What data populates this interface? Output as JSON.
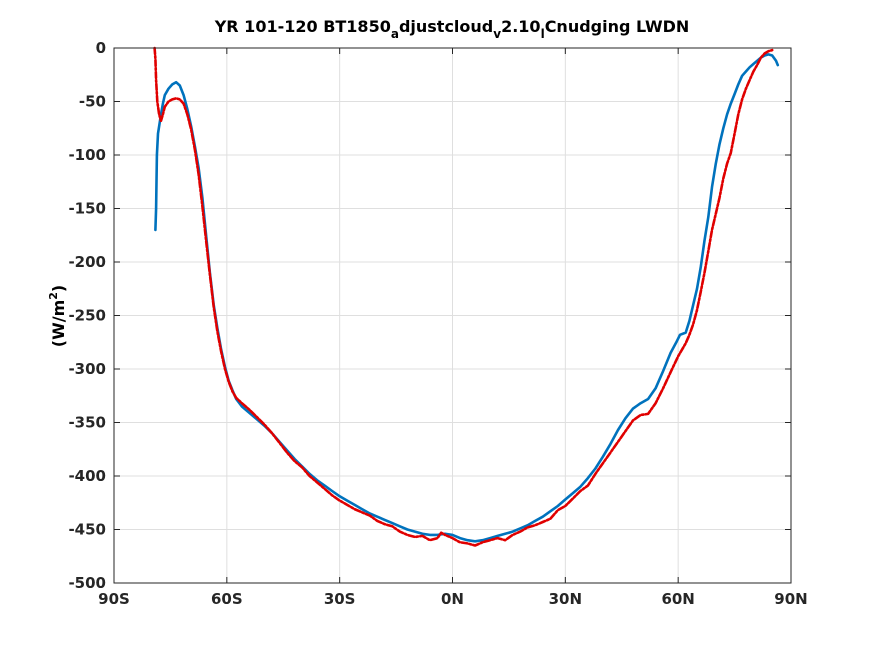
{
  "chart_data": {
    "type": "line",
    "title": {
      "prefix": "YR 101-120 BT1850",
      "sub1": "a",
      "mid": "djustcloud",
      "sub2": "v",
      "mid2": "2.10",
      "sub3": "l",
      "suffix": "Cnudging LWDN"
    },
    "xlabel": "",
    "ylabel": {
      "base": "(W/m",
      "sup": "2",
      "close": ")"
    },
    "xlim": [
      -90,
      90
    ],
    "ylim": [
      -500,
      0
    ],
    "x_ticks": [
      -90,
      -60,
      -30,
      0,
      30,
      60,
      90
    ],
    "x_tick_labels": [
      "90S",
      "60S",
      "30S",
      "0N",
      "30N",
      "60N",
      "90N"
    ],
    "y_ticks": [
      0,
      -50,
      -100,
      -150,
      -200,
      -250,
      -300,
      -350,
      -400,
      -450,
      -500
    ],
    "y_tick_labels": [
      "0",
      "-50",
      "-100",
      "-150",
      "-200",
      "-250",
      "-300",
      "-350",
      "-400",
      "-450",
      "-500"
    ],
    "grid": true,
    "series": [
      {
        "color": "#0072bd",
        "style": "solid",
        "points": [
          [
            -79,
            -170
          ],
          [
            -78.8,
            -150
          ],
          [
            -78.6,
            -100
          ],
          [
            -78.3,
            -80
          ],
          [
            -77.5,
            -62
          ],
          [
            -77,
            -52
          ],
          [
            -76.5,
            -44
          ],
          [
            -75.5,
            -38
          ],
          [
            -74.5,
            -34
          ],
          [
            -73.5,
            -32
          ],
          [
            -72.5,
            -35
          ],
          [
            -71.5,
            -44
          ],
          [
            -70.5,
            -57
          ],
          [
            -69.5,
            -73
          ],
          [
            -68.5,
            -92
          ],
          [
            -67.5,
            -112
          ],
          [
            -66.5,
            -140
          ],
          [
            -65.5,
            -175
          ],
          [
            -64.5,
            -210
          ],
          [
            -63.5,
            -240
          ],
          [
            -62.5,
            -262
          ],
          [
            -61.5,
            -282
          ],
          [
            -60.5,
            -298
          ],
          [
            -59.5,
            -311
          ],
          [
            -58.5,
            -320
          ],
          [
            -57.5,
            -328
          ],
          [
            -56,
            -335
          ],
          [
            -54,
            -341
          ],
          [
            -52,
            -347
          ],
          [
            -50,
            -353
          ],
          [
            -48,
            -360
          ],
          [
            -46,
            -368
          ],
          [
            -44,
            -376
          ],
          [
            -42,
            -384
          ],
          [
            -40,
            -391
          ],
          [
            -38,
            -398
          ],
          [
            -36,
            -404
          ],
          [
            -34,
            -409
          ],
          [
            -32,
            -414
          ],
          [
            -30,
            -419
          ],
          [
            -28,
            -423
          ],
          [
            -26,
            -427
          ],
          [
            -24,
            -431
          ],
          [
            -22,
            -435
          ],
          [
            -20,
            -438
          ],
          [
            -18,
            -441
          ],
          [
            -16,
            -444
          ],
          [
            -14,
            -447
          ],
          [
            -12,
            -450
          ],
          [
            -10,
            -452
          ],
          [
            -8,
            -454
          ],
          [
            -6,
            -455
          ],
          [
            -4,
            -455
          ],
          [
            -2,
            -454
          ],
          [
            0,
            -455
          ],
          [
            2,
            -458
          ],
          [
            4,
            -460
          ],
          [
            6,
            -461
          ],
          [
            8,
            -460
          ],
          [
            10,
            -458
          ],
          [
            12,
            -456
          ],
          [
            14,
            -454
          ],
          [
            16,
            -452
          ],
          [
            18,
            -449
          ],
          [
            20,
            -446
          ],
          [
            22,
            -442
          ],
          [
            24,
            -438
          ],
          [
            26,
            -433
          ],
          [
            28,
            -428
          ],
          [
            30,
            -422
          ],
          [
            32,
            -416
          ],
          [
            34,
            -410
          ],
          [
            36,
            -402
          ],
          [
            38,
            -393
          ],
          [
            40,
            -382
          ],
          [
            42,
            -370
          ],
          [
            44,
            -357
          ],
          [
            46,
            -346
          ],
          [
            48,
            -337
          ],
          [
            50,
            -332
          ],
          [
            52,
            -328
          ],
          [
            54,
            -318
          ],
          [
            56,
            -302
          ],
          [
            58,
            -285
          ],
          [
            59.5,
            -275
          ],
          [
            60.5,
            -268
          ],
          [
            62,
            -266
          ],
          [
            63,
            -255
          ],
          [
            64,
            -240
          ],
          [
            65,
            -225
          ],
          [
            66,
            -205
          ],
          [
            67,
            -180
          ],
          [
            68,
            -158
          ],
          [
            69,
            -130
          ],
          [
            70,
            -108
          ],
          [
            71,
            -90
          ],
          [
            72,
            -75
          ],
          [
            73,
            -62
          ],
          [
            74,
            -52
          ],
          [
            75,
            -43
          ],
          [
            76,
            -34
          ],
          [
            77,
            -26
          ],
          [
            78,
            -22
          ],
          [
            79,
            -18
          ],
          [
            80,
            -15
          ],
          [
            81,
            -12
          ],
          [
            82,
            -9
          ],
          [
            83,
            -7
          ],
          [
            84,
            -6
          ],
          [
            85,
            -7
          ],
          [
            86,
            -12
          ],
          [
            86.5,
            -16
          ]
        ]
      },
      {
        "color": "#e00000",
        "style": "dashed",
        "points": [
          [
            -79.2,
            0
          ],
          [
            -79,
            -10
          ],
          [
            -78.8,
            -30
          ],
          [
            -78.5,
            -50
          ],
          [
            -78,
            -62
          ],
          [
            -77.5,
            -68
          ],
          [
            -77,
            -62
          ],
          [
            -76.5,
            -55
          ],
          [
            -75.5,
            -50
          ],
          [
            -74.5,
            -48
          ],
          [
            -73.5,
            -47
          ],
          [
            -72.5,
            -48
          ],
          [
            -71.5,
            -52
          ],
          [
            -70.5,
            -62
          ],
          [
            -69.5,
            -76
          ],
          [
            -68.5,
            -95
          ],
          [
            -67.5,
            -118
          ],
          [
            -66.5,
            -148
          ],
          [
            -65.5,
            -180
          ],
          [
            -64.5,
            -212
          ],
          [
            -63.5,
            -242
          ],
          [
            -62.5,
            -265
          ],
          [
            -61.5,
            -284
          ],
          [
            -60.5,
            -300
          ],
          [
            -59.5,
            -312
          ],
          [
            -58.5,
            -321
          ],
          [
            -57.5,
            -327
          ],
          [
            -56,
            -332
          ],
          [
            -54,
            -338
          ],
          [
            -52,
            -345
          ],
          [
            -50,
            -352
          ],
          [
            -48,
            -360
          ],
          [
            -46,
            -369
          ],
          [
            -44,
            -378
          ],
          [
            -42,
            -386
          ],
          [
            -40,
            -392
          ],
          [
            -38,
            -400
          ],
          [
            -36,
            -406
          ],
          [
            -34,
            -412
          ],
          [
            -32,
            -418
          ],
          [
            -30,
            -423
          ],
          [
            -28,
            -427
          ],
          [
            -26,
            -431
          ],
          [
            -24,
            -434
          ],
          [
            -22,
            -437
          ],
          [
            -20,
            -442
          ],
          [
            -18,
            -445
          ],
          [
            -16,
            -447
          ],
          [
            -14,
            -452
          ],
          [
            -12,
            -455
          ],
          [
            -10,
            -457
          ],
          [
            -8,
            -456
          ],
          [
            -6,
            -460
          ],
          [
            -4,
            -458
          ],
          [
            -3,
            -453
          ],
          [
            -2,
            -455
          ],
          [
            0,
            -458
          ],
          [
            2,
            -462
          ],
          [
            4,
            -463
          ],
          [
            6,
            -465
          ],
          [
            8,
            -462
          ],
          [
            10,
            -460
          ],
          [
            12,
            -458
          ],
          [
            14,
            -460
          ],
          [
            16,
            -455
          ],
          [
            18,
            -452
          ],
          [
            20,
            -448
          ],
          [
            22,
            -446
          ],
          [
            24,
            -443
          ],
          [
            26,
            -440
          ],
          [
            28,
            -432
          ],
          [
            30,
            -428
          ],
          [
            32,
            -421
          ],
          [
            34,
            -414
          ],
          [
            36,
            -409
          ],
          [
            38,
            -398
          ],
          [
            40,
            -388
          ],
          [
            42,
            -378
          ],
          [
            44,
            -368
          ],
          [
            46,
            -358
          ],
          [
            48,
            -348
          ],
          [
            50,
            -343
          ],
          [
            52,
            -342
          ],
          [
            54,
            -332
          ],
          [
            56,
            -318
          ],
          [
            58,
            -303
          ],
          [
            60,
            -288
          ],
          [
            62,
            -276
          ],
          [
            63,
            -268
          ],
          [
            64,
            -258
          ],
          [
            65,
            -245
          ],
          [
            66,
            -228
          ],
          [
            67,
            -210
          ],
          [
            68,
            -190
          ],
          [
            69,
            -170
          ],
          [
            70,
            -155
          ],
          [
            71,
            -140
          ],
          [
            72,
            -122
          ],
          [
            73,
            -108
          ],
          [
            74,
            -98
          ],
          [
            75,
            -80
          ],
          [
            76,
            -62
          ],
          [
            77,
            -48
          ],
          [
            78,
            -38
          ],
          [
            79,
            -30
          ],
          [
            80,
            -22
          ],
          [
            81,
            -16
          ],
          [
            82,
            -9
          ],
          [
            83,
            -5
          ],
          [
            84,
            -3
          ],
          [
            85,
            -2
          ]
        ]
      }
    ]
  }
}
